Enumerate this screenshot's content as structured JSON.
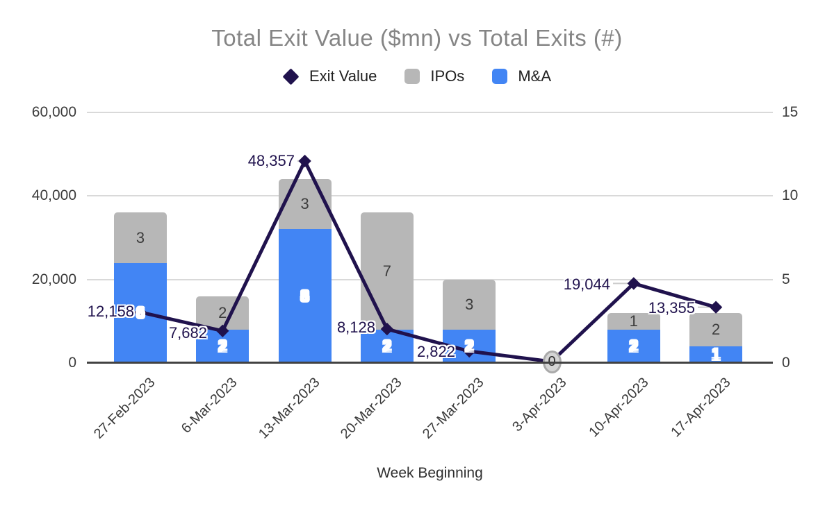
{
  "title": "Total Exit Value ($mn) vs Total Exits (#)",
  "legend": {
    "items": [
      {
        "label": "Exit Value",
        "marker": "diamond-icon",
        "color": "#20124d"
      },
      {
        "label": "IPOs",
        "marker": "square-icon",
        "color": "#b7b7b7"
      },
      {
        "label": "M&A",
        "marker": "square-icon",
        "color": "#4285f4"
      }
    ]
  },
  "x_axis": {
    "title": "Week Beginning"
  },
  "colors": {
    "line": "#20124d",
    "ipo_bar": "#b7b7b7",
    "ma_bar": "#4285f4",
    "gridline": "#d9d9d9",
    "axis_text": "#3c3c3c",
    "title_text": "#858585"
  },
  "chart_data": {
    "type": "combo",
    "title": "Total Exit Value ($mn) vs Total Exits (#)",
    "xlabel": "Week Beginning",
    "legend_position": "top",
    "grid": "horizontal",
    "categories": [
      "27-Feb-2023",
      "6-Mar-2023",
      "13-Mar-2023",
      "20-Mar-2023",
      "27-Mar-2023",
      "3-Apr-2023",
      "10-Apr-2023",
      "17-Apr-2023"
    ],
    "series": [
      {
        "name": "Exit Value",
        "type": "line",
        "axis": "left",
        "color": "#20124d",
        "values": [
          12158,
          7682,
          48357,
          8128,
          2822,
          0,
          19044,
          13355
        ],
        "labels": [
          "12,158",
          "7,682",
          "48,357",
          "8,128",
          "2,822",
          "0",
          "19,044",
          "13,355"
        ]
      },
      {
        "name": "IPOs",
        "type": "bar",
        "stack": "top",
        "axis": "right",
        "color": "#b7b7b7",
        "values": [
          3,
          2,
          3,
          7,
          3,
          0,
          1,
          2
        ]
      },
      {
        "name": "M&A",
        "type": "bar",
        "stack": "bottom",
        "axis": "right",
        "color": "#4285f4",
        "values": [
          6,
          2,
          8,
          2,
          2,
          0,
          2,
          1
        ]
      }
    ],
    "left_axis": {
      "min": 0,
      "max": 60000,
      "ticks": [
        0,
        20000,
        40000,
        60000
      ],
      "tick_labels": [
        "0",
        "20,000",
        "40,000",
        "60,000"
      ]
    },
    "right_axis": {
      "min": 0,
      "max": 15,
      "ticks": [
        0,
        5,
        10,
        15
      ],
      "tick_labels": [
        "0",
        "5",
        "10",
        "15"
      ]
    }
  }
}
